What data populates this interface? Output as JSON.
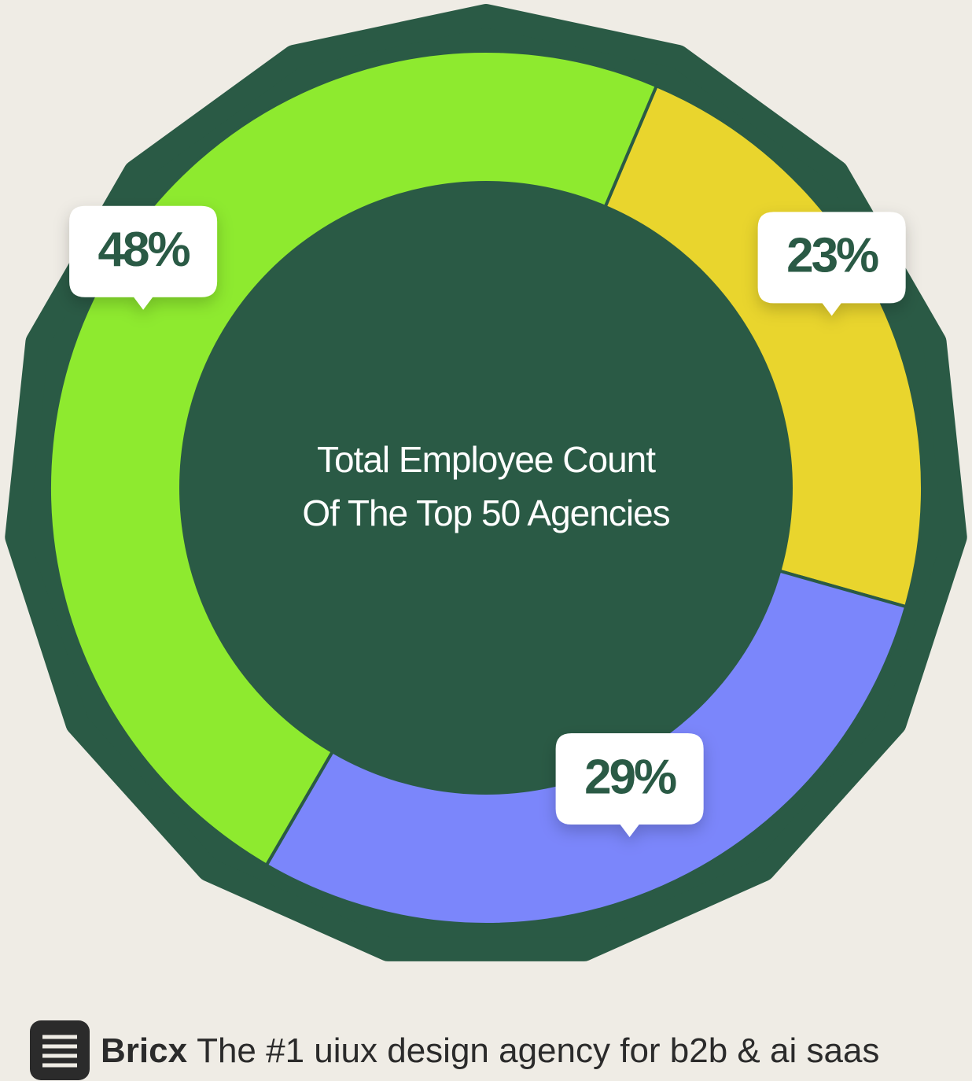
{
  "chart_data": {
    "type": "pie",
    "donut": true,
    "title": [
      "Total Employee Count",
      "Of The Top 50 Agencies"
    ],
    "values": [
      23,
      29,
      48
    ],
    "value_labels": [
      "23%",
      "29%",
      "48%"
    ],
    "colors": [
      "#e9d52d",
      "#7b86fb",
      "#8eea2f"
    ]
  },
  "footer": {
    "brand": "Bricx",
    "tagline": "The #1 uiux design agency for b2b & ai saas"
  }
}
